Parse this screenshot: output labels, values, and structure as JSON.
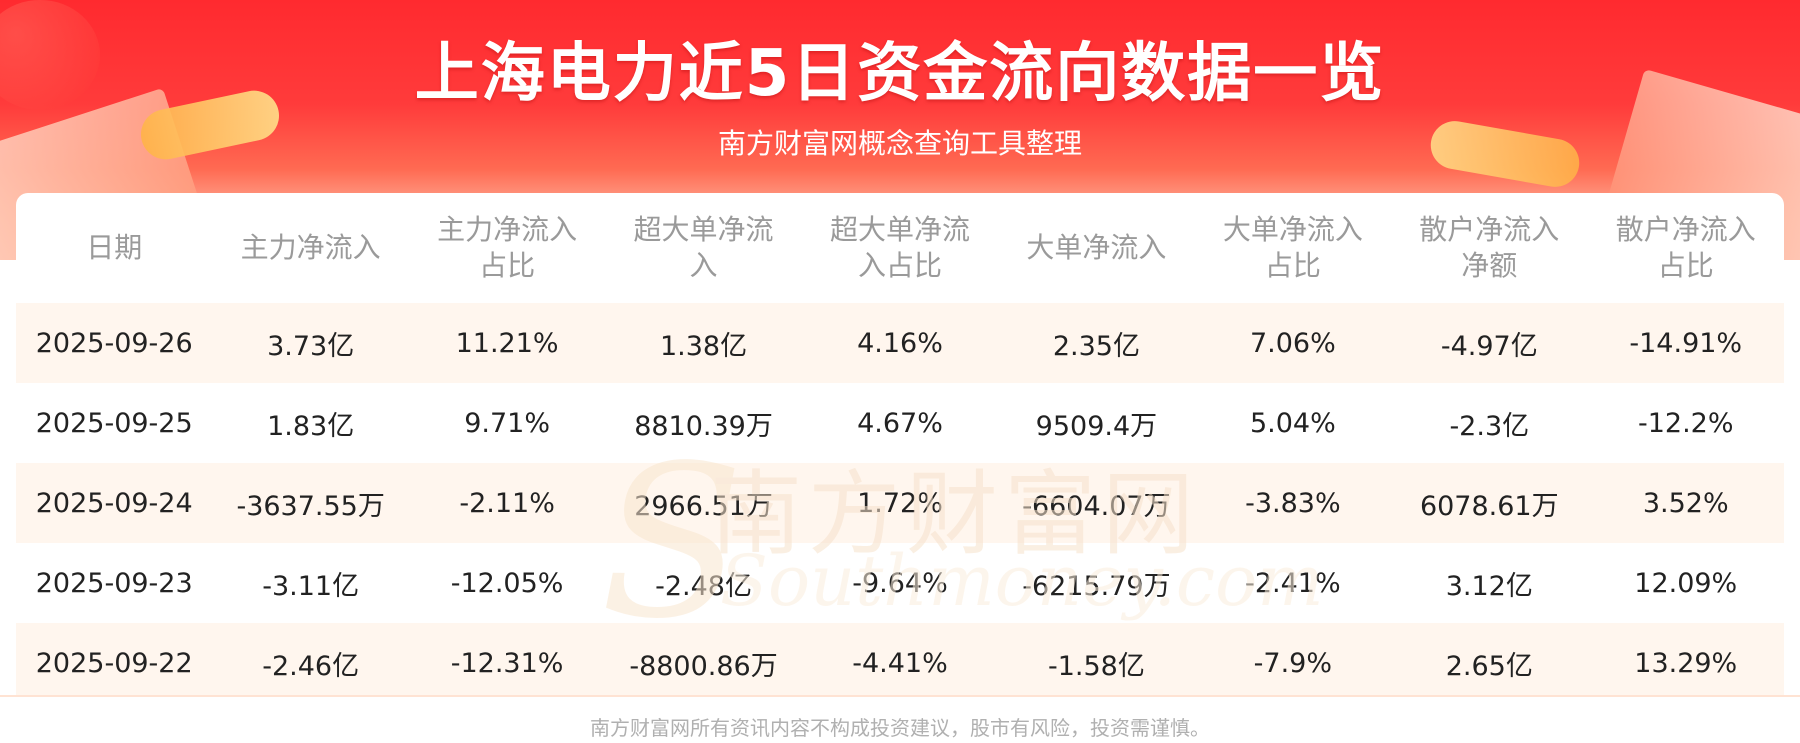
{
  "header": {
    "title": "上海电力近5日资金流向数据一览",
    "subtitle": "南方财富网概念查询工具整理"
  },
  "watermark": {
    "chinese": "南方财富网",
    "english": "Southmoney.com"
  },
  "table": {
    "columns": [
      [
        "日期"
      ],
      [
        "主力净流入"
      ],
      [
        "主力净流入",
        "占比"
      ],
      [
        "超大单净流",
        "入"
      ],
      [
        "超大单净流",
        "入占比"
      ],
      [
        "大单净流入"
      ],
      [
        "大单净流入",
        "占比"
      ],
      [
        "散户净流入",
        "净额"
      ],
      [
        "散户净流入",
        "占比"
      ]
    ],
    "rows": [
      [
        "2025-09-26",
        "3.73亿",
        "11.21%",
        "1.38亿",
        "4.16%",
        "2.35亿",
        "7.06%",
        "-4.97亿",
        "-14.91%"
      ],
      [
        "2025-09-25",
        "1.83亿",
        "9.71%",
        "8810.39万",
        "4.67%",
        "9509.4万",
        "5.04%",
        "-2.3亿",
        "-12.2%"
      ],
      [
        "2025-09-24",
        "-3637.55万",
        "-2.11%",
        "2966.51万",
        "1.72%",
        "-6604.07万",
        "-3.83%",
        "6078.61万",
        "3.52%"
      ],
      [
        "2025-09-23",
        "-3.11亿",
        "-12.05%",
        "-2.48亿",
        "-9.64%",
        "-6215.79万",
        "-2.41%",
        "3.12亿",
        "12.09%"
      ],
      [
        "2025-09-22",
        "-2.46亿",
        "-12.31%",
        "-8800.86万",
        "-4.41%",
        "-1.58亿",
        "-7.9%",
        "2.65亿",
        "13.29%"
      ]
    ]
  },
  "footer": {
    "disclaimer": "南方财富网所有资讯内容不构成投资建议，股市有风险，投资需谨慎。"
  },
  "colors": {
    "header_red": "#ff2a2f",
    "row_alt_bg": "#fff6ee",
    "header_text": "#9a9a9a",
    "body_text": "#222222"
  }
}
